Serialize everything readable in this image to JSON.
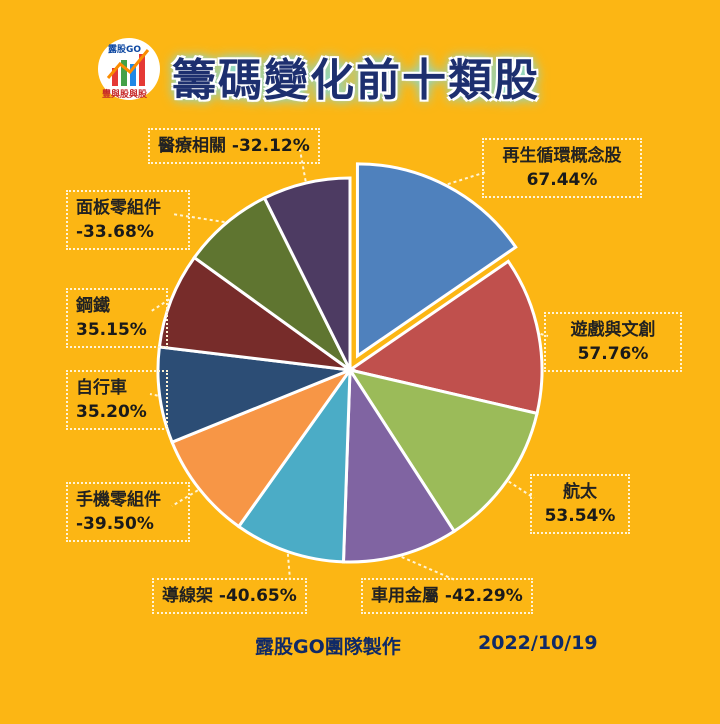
{
  "header": {
    "title": "籌碼變化前十類股",
    "logo_text_top": "露股GO",
    "logo_text_bottom": "豐與股與股"
  },
  "footer": {
    "team": "露股GO團隊製作",
    "date": "2022/10/19"
  },
  "chart_data": {
    "type": "pie",
    "title": "籌碼變化前十類股",
    "slices": [
      {
        "name": "再生循環概念股",
        "label": "67.44%",
        "value": 67.44,
        "color": "#4F81BD",
        "exploded": true
      },
      {
        "name": "遊戲與文創",
        "label": "57.76%",
        "value": 57.76,
        "color": "#C0504D"
      },
      {
        "name": "航太",
        "label": "53.54%",
        "value": 53.54,
        "color": "#9BBB59"
      },
      {
        "name": "車用金屬",
        "label": "-42.29%",
        "value": 42.29,
        "color": "#8064A2"
      },
      {
        "name": "導線架",
        "label": "-40.65%",
        "value": 40.65,
        "color": "#4BACC6"
      },
      {
        "name": "手機零組件",
        "label": "-39.50%",
        "value": 39.5,
        "color": "#F79646"
      },
      {
        "name": "自行車",
        "label": "35.20%",
        "value": 35.2,
        "color": "#2C4D75"
      },
      {
        "name": "鋼鐵",
        "label": "35.15%",
        "value": 35.15,
        "color": "#772C2A"
      },
      {
        "name": "面板零組件",
        "label": "-33.68%",
        "value": 33.68,
        "color": "#5F7530"
      },
      {
        "name": "醫療相關",
        "label": "-32.12%",
        "value": 32.12,
        "color": "#4D3B62"
      }
    ]
  }
}
